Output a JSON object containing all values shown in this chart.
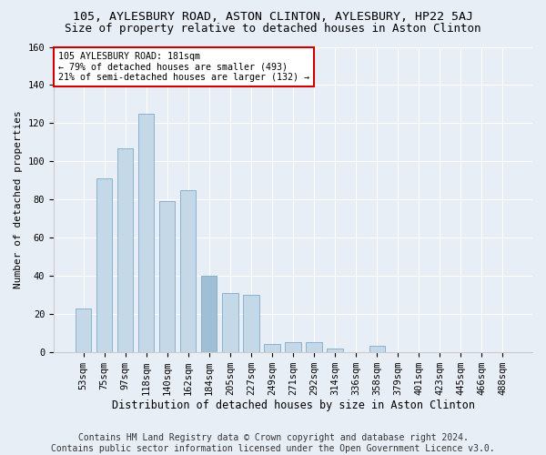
{
  "title1": "105, AYLESBURY ROAD, ASTON CLINTON, AYLESBURY, HP22 5AJ",
  "title2": "Size of property relative to detached houses in Aston Clinton",
  "xlabel": "Distribution of detached houses by size in Aston Clinton",
  "ylabel": "Number of detached properties",
  "categories": [
    "53sqm",
    "75sqm",
    "97sqm",
    "118sqm",
    "140sqm",
    "162sqm",
    "184sqm",
    "205sqm",
    "227sqm",
    "249sqm",
    "271sqm",
    "292sqm",
    "314sqm",
    "336sqm",
    "358sqm",
    "379sqm",
    "401sqm",
    "423sqm",
    "445sqm",
    "466sqm",
    "488sqm"
  ],
  "values": [
    23,
    91,
    107,
    125,
    79,
    85,
    40,
    31,
    30,
    4,
    5,
    5,
    2,
    0,
    3,
    0,
    0,
    0,
    0,
    0,
    0
  ],
  "bar_color_normal": "#c5d8e8",
  "bar_color_highlight": "#a0bfd4",
  "bar_edge_color": "#7aaac8",
  "highlight_index": 6,
  "annotation_text": "105 AYLESBURY ROAD: 181sqm\n← 79% of detached houses are smaller (493)\n21% of semi-detached houses are larger (132) →",
  "annotation_box_color": "#ffffff",
  "annotation_box_edgecolor": "#cc0000",
  "footer_text": "Contains HM Land Registry data © Crown copyright and database right 2024.\nContains public sector information licensed under the Open Government Licence v3.0.",
  "background_color": "#e8eef5",
  "ylim": [
    0,
    160
  ],
  "yticks": [
    0,
    20,
    40,
    60,
    80,
    100,
    120,
    140,
    160
  ],
  "title1_fontsize": 9.5,
  "title2_fontsize": 9,
  "xlabel_fontsize": 8.5,
  "ylabel_fontsize": 8,
  "tick_fontsize": 7.5,
  "footer_fontsize": 7,
  "grid_color": "#ffffff",
  "spine_color": "#cccccc"
}
